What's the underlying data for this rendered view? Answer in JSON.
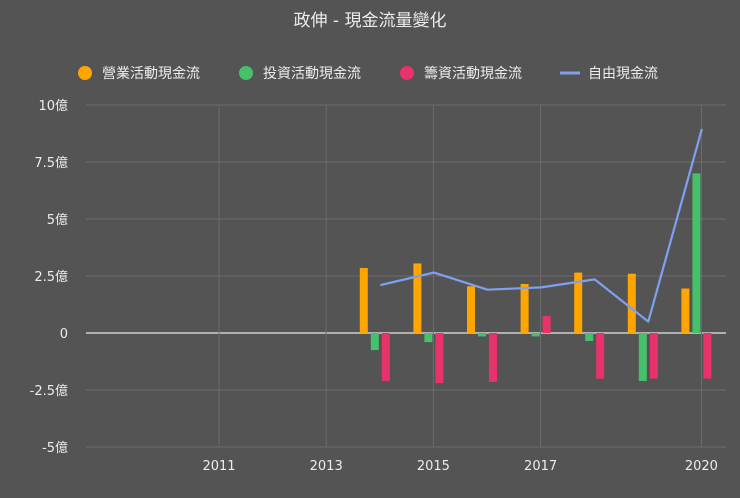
{
  "colors": {
    "background": "#545454",
    "text": "#ececec",
    "grid": "#6c6c6c",
    "axis": "#e6e6e6",
    "operating": "#ffa500",
    "investing": "#46c06a",
    "financing": "#e8326c",
    "free": "#7ea0ee"
  },
  "chart_data": {
    "type": "bar",
    "title": "政伸 - 現金流量變化",
    "xlabel": "",
    "ylabel": "",
    "ylim": [
      -5,
      10
    ],
    "yticks": [
      10,
      7.5,
      5,
      2.5,
      0,
      -2.5,
      -5
    ],
    "ytick_labels": [
      "10億",
      "7.5億",
      "5億",
      "2.5億",
      "0",
      "-2.5億",
      "-5億"
    ],
    "x_years": [
      2014,
      2015,
      2016,
      2017,
      2018,
      2019,
      2020
    ],
    "xtick_labels": [
      "2011",
      "2013",
      "2015",
      "2017",
      "2020"
    ],
    "xtick_years": [
      2011,
      2013,
      2015,
      2017,
      2020
    ],
    "legend_position": "top",
    "grid": true,
    "series": [
      {
        "name": "營業活動現金流",
        "kind": "bar",
        "color_key": "operating",
        "values": [
          2.85,
          3.05,
          2.05,
          2.15,
          2.65,
          2.6,
          1.95
        ]
      },
      {
        "name": "投資活動現金流",
        "kind": "bar",
        "color_key": "investing",
        "values": [
          -0.75,
          -0.4,
          -0.15,
          -0.15,
          -0.35,
          -2.1,
          7.0
        ]
      },
      {
        "name": "籌資活動現金流",
        "kind": "bar",
        "color_key": "financing",
        "values": [
          -2.1,
          -2.2,
          -2.15,
          0.75,
          -2.0,
          -2.0,
          -2.0
        ]
      },
      {
        "name": "自由現金流",
        "kind": "line",
        "color_key": "free",
        "values": [
          2.1,
          2.65,
          1.9,
          2.0,
          2.35,
          0.5,
          8.95
        ]
      }
    ]
  }
}
